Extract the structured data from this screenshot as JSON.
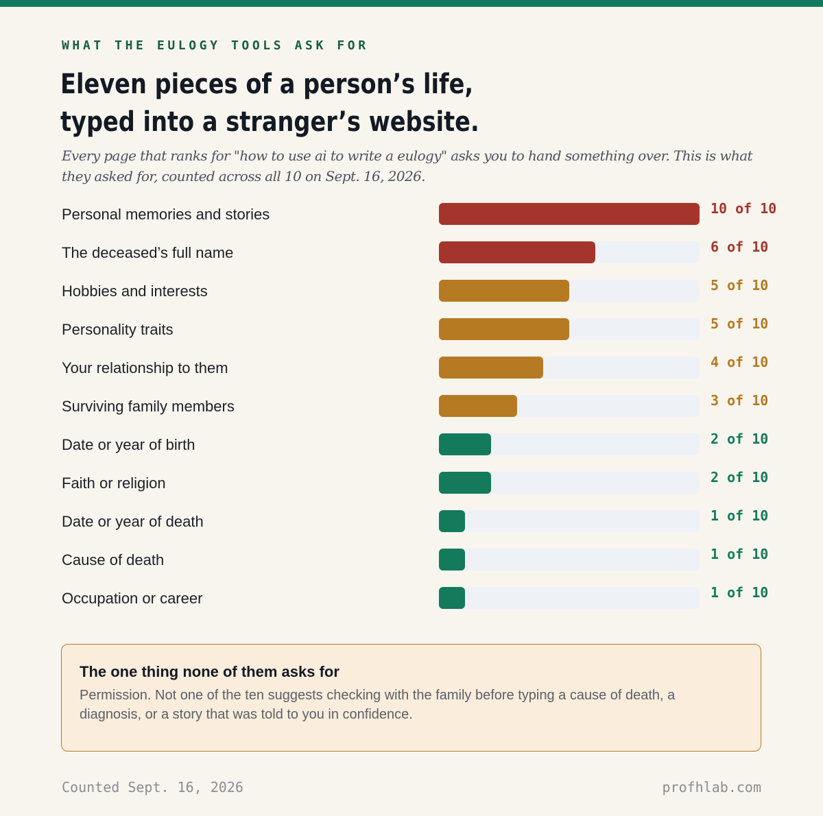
{
  "header": {
    "eyebrow": "WHAT THE EULOGY TOOLS ASK FOR",
    "title_line1": "Eleven pieces of a person’s life,",
    "title_line2": "typed into a stranger’s website.",
    "subtitle": "Every page that ranks for \"how to use ai to write a eulogy\" asks you to hand something over. This is what they asked for, counted across all 10 on Sept. 16, 2026."
  },
  "colors": {
    "accent": "#147a5c",
    "high": "#a5352c",
    "mid": "#b57a22",
    "low": "#147a5c",
    "track": "#eef1f5"
  },
  "chart_data": {
    "type": "bar",
    "orientation": "horizontal",
    "total": 10,
    "xlim": [
      0,
      10
    ],
    "grid": false,
    "categories": [
      "Personal memories and stories",
      "The deceased’s full name",
      "Hobbies and interests",
      "Personality traits",
      "Your relationship to them",
      "Surviving family members",
      "Date or year of birth",
      "Faith or religion",
      "Date or year of death",
      "Cause of death",
      "Occupation or career"
    ],
    "values": [
      10,
      6,
      5,
      5,
      4,
      3,
      2,
      2,
      1,
      1,
      1
    ],
    "value_labels": [
      "10 of 10",
      "6 of 10",
      "5 of 10",
      "5 of 10",
      "4 of 10",
      "3 of 10",
      "2 of 10",
      "2 of 10",
      "1 of 10",
      "1 of 10",
      "1 of 10"
    ],
    "bar_tier": [
      "high",
      "high",
      "mid",
      "mid",
      "mid",
      "mid",
      "low",
      "low",
      "low",
      "low",
      "low"
    ]
  },
  "note": {
    "title": "The one thing none of them asks for",
    "body": "Permission. Not one of the ten suggests checking with the family before typing a cause of death, a diagnosis, or a story that was told to you in confidence."
  },
  "footer": {
    "left": "Counted Sept. 16, 2026",
    "right": "profhlab.com"
  }
}
